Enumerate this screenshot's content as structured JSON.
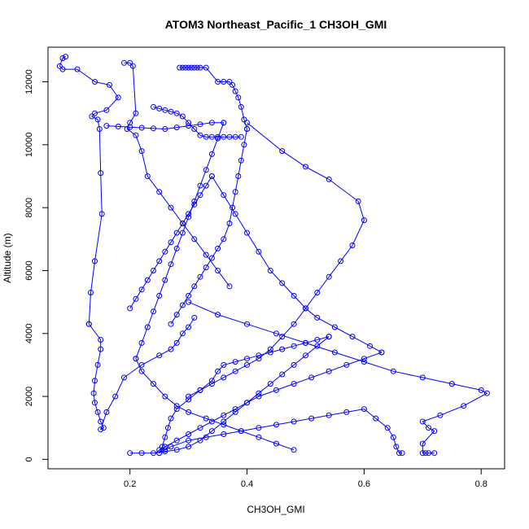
{
  "chart_data": {
    "type": "line",
    "title": "ATOM3 Northeast_Pacific_1 CH3OH_GMI",
    "xlabel": "CH3OH_GMI",
    "ylabel": "Altitude (m)",
    "xlim": [
      0.06,
      0.84
    ],
    "ylim": [
      -300,
      13100
    ],
    "xticks": [
      0.2,
      0.4,
      0.6,
      0.8
    ],
    "xtick_labels": [
      "0.2",
      "0.4",
      "0.6",
      "0.8"
    ],
    "yticks": [
      0,
      2000,
      4000,
      6000,
      8000,
      10000,
      12000
    ],
    "ytick_labels": [
      "0",
      "2000",
      "4000",
      "6000",
      "8000",
      "10000",
      "12000"
    ],
    "grid": false,
    "legend": "none",
    "series_color": "#0000ff",
    "marker": "open-circle",
    "series": [
      {
        "x": [
          0.09,
          0.085,
          0.08,
          0.085,
          0.11,
          0.14,
          0.165,
          0.18,
          0.16,
          0.14,
          0.135,
          0.145,
          0.148,
          0.15,
          0.152,
          0.14,
          0.133,
          0.13
        ],
        "y": [
          12800,
          12750,
          12500,
          12400,
          12400,
          12000,
          11900,
          11500,
          11100,
          11000,
          10900,
          10800,
          10500,
          9100,
          7800,
          6300,
          5300,
          4300
        ]
      },
      {
        "x": [
          0.13,
          0.15,
          0.15,
          0.145,
          0.14,
          0.138,
          0.14,
          0.145,
          0.15,
          0.155,
          0.15,
          0.16,
          0.175,
          0.19,
          0.22,
          0.25,
          0.27,
          0.28,
          0.29,
          0.3,
          0.31
        ],
        "y": [
          4300,
          3800,
          3500,
          3000,
          2500,
          2100,
          1800,
          1500,
          1200,
          1000,
          950,
          1500,
          2000,
          2600,
          3000,
          3300,
          3500,
          3700,
          4000,
          4200,
          4500
        ]
      },
      {
        "x": [
          0.19,
          0.2,
          0.205,
          0.21,
          0.2,
          0.195,
          0.21,
          0.22,
          0.23,
          0.25,
          0.27,
          0.29,
          0.31,
          0.33,
          0.35,
          0.37
        ],
        "y": [
          12600,
          12600,
          12500,
          11000,
          10700,
          10500,
          10300,
          9800,
          9000,
          8500,
          8000,
          7500,
          7000,
          6500,
          6000,
          5500
        ]
      },
      {
        "x": [
          0.24,
          0.25,
          0.26,
          0.27,
          0.28,
          0.29,
          0.3,
          0.31,
          0.32,
          0.33,
          0.34,
          0.35,
          0.36,
          0.37,
          0.38,
          0.39
        ],
        "y": [
          11200,
          11150,
          11100,
          11050,
          11000,
          10900,
          10700,
          10500,
          10300,
          10250,
          10250,
          10250,
          10250,
          10250,
          10250,
          10250
        ]
      },
      {
        "x": [
          0.285,
          0.29,
          0.295,
          0.3,
          0.305,
          0.31,
          0.315,
          0.32,
          0.33,
          0.35,
          0.36,
          0.37,
          0.375,
          0.38,
          0.385,
          0.39,
          0.395,
          0.4
        ],
        "y": [
          12450,
          12450,
          12450,
          12450,
          12450,
          12450,
          12450,
          12450,
          12450,
          12000,
          12000,
          12000,
          11900,
          11700,
          11500,
          11200,
          10800,
          10500
        ]
      },
      {
        "x": [
          0.4,
          0.395,
          0.39,
          0.385,
          0.38,
          0.375,
          0.37,
          0.36,
          0.35,
          0.34,
          0.33,
          0.32,
          0.31,
          0.3,
          0.29,
          0.28,
          0.27
        ],
        "y": [
          10500,
          10000,
          9500,
          9000,
          8500,
          8000,
          7500,
          7000,
          6700,
          6400,
          6100,
          5800,
          5500,
          5200,
          4900,
          4600,
          4300
        ]
      },
      {
        "x": [
          0.4,
          0.46,
          0.5,
          0.54,
          0.59,
          0.6,
          0.58,
          0.56,
          0.54,
          0.52,
          0.5,
          0.48,
          0.46,
          0.44,
          0.42,
          0.4,
          0.38,
          0.36,
          0.34,
          0.32,
          0.3
        ],
        "y": [
          10700,
          9800,
          9300,
          8900,
          8200,
          7600,
          6800,
          6300,
          5800,
          5300,
          4800,
          4300,
          3900,
          3500,
          3200,
          3000,
          2800,
          2600,
          2400,
          2200,
          2000
        ]
      },
      {
        "x": [
          0.3,
          0.35,
          0.4,
          0.45,
          0.5,
          0.55,
          0.6,
          0.65,
          0.7,
          0.75,
          0.8,
          0.81,
          0.77,
          0.73,
          0.7,
          0.71,
          0.72,
          0.7,
          0.7,
          0.705,
          0.71,
          0.72
        ],
        "y": [
          5000,
          4600,
          4300,
          4000,
          3700,
          3400,
          3100,
          2800,
          2600,
          2400,
          2200,
          2100,
          1700,
          1400,
          1200,
          1000,
          900,
          500,
          200,
          200,
          200,
          200
        ]
      },
      {
        "x": [
          0.25,
          0.26,
          0.27,
          0.3,
          0.33,
          0.36,
          0.39,
          0.42,
          0.45,
          0.48,
          0.51,
          0.54,
          0.57,
          0.6,
          0.62,
          0.64,
          0.65,
          0.655,
          0.66,
          0.665
        ],
        "y": [
          200,
          300,
          400,
          600,
          700,
          800,
          900,
          1000,
          1100,
          1200,
          1300,
          1400,
          1500,
          1600,
          1300,
          1000,
          700,
          400,
          200,
          200
        ]
      },
      {
        "x": [
          0.25,
          0.255,
          0.26,
          0.265,
          0.27,
          0.28,
          0.3,
          0.32,
          0.34,
          0.35,
          0.36,
          0.38,
          0.4,
          0.42,
          0.44,
          0.46,
          0.48,
          0.5,
          0.52,
          0.54
        ],
        "y": [
          200,
          400,
          700,
          1000,
          1300,
          1600,
          1900,
          2200,
          2500,
          2800,
          3000,
          3100,
          3200,
          3300,
          3400,
          3500,
          3600,
          3700,
          3800,
          3900
        ]
      },
      {
        "x": [
          0.54,
          0.52,
          0.5,
          0.48,
          0.46,
          0.44,
          0.42,
          0.4,
          0.38,
          0.36,
          0.34,
          0.32,
          0.3,
          0.28,
          0.26,
          0.24,
          0.22,
          0.2
        ],
        "y": [
          3900,
          3600,
          3300,
          3000,
          2700,
          2400,
          2100,
          1800,
          1500,
          1200,
          900,
          600,
          400,
          300,
          250,
          200,
          200,
          200
        ]
      },
      {
        "x": [
          0.2,
          0.21,
          0.22,
          0.23,
          0.24,
          0.25,
          0.26,
          0.27,
          0.28,
          0.29,
          0.3,
          0.31,
          0.32,
          0.33,
          0.34
        ],
        "y": [
          4800,
          5100,
          5400,
          5700,
          6000,
          6300,
          6600,
          6900,
          7200,
          7500,
          7800,
          8100,
          8400,
          8700,
          9000
        ]
      },
      {
        "x": [
          0.34,
          0.36,
          0.38,
          0.4,
          0.42,
          0.44,
          0.46,
          0.48,
          0.5,
          0.52,
          0.55,
          0.58,
          0.61,
          0.63
        ],
        "y": [
          9000,
          8400,
          7800,
          7200,
          6600,
          6000,
          5600,
          5200,
          4800,
          4500,
          4200,
          3900,
          3600,
          3400
        ]
      },
      {
        "x": [
          0.63,
          0.6,
          0.57,
          0.54,
          0.51,
          0.48,
          0.45,
          0.42,
          0.4,
          0.38,
          0.36,
          0.34,
          0.32,
          0.3,
          0.28,
          0.26,
          0.25
        ],
        "y": [
          3400,
          3200,
          3000,
          2800,
          2600,
          2400,
          2200,
          2000,
          1800,
          1600,
          1400,
          1200,
          1000,
          800,
          600,
          400,
          300
        ]
      },
      {
        "x": [
          0.16,
          0.18,
          0.2,
          0.22,
          0.24,
          0.26,
          0.28,
          0.3,
          0.32,
          0.34,
          0.36
        ],
        "y": [
          10600,
          10580,
          10560,
          10540,
          10520,
          10500,
          10550,
          10600,
          10650,
          10700,
          10700
        ]
      },
      {
        "x": [
          0.36,
          0.35,
          0.34,
          0.33,
          0.32,
          0.31,
          0.3,
          0.29,
          0.28,
          0.27,
          0.26,
          0.25,
          0.24,
          0.23,
          0.22,
          0.21
        ],
        "y": [
          10700,
          10200,
          9700,
          9200,
          8700,
          8200,
          7700,
          7200,
          6700,
          6200,
          5700,
          5200,
          4700,
          4200,
          3700,
          3200
        ]
      },
      {
        "x": [
          0.21,
          0.22,
          0.24,
          0.26,
          0.28,
          0.3,
          0.33,
          0.36,
          0.39,
          0.42,
          0.45,
          0.48
        ],
        "y": [
          3200,
          2800,
          2400,
          2000,
          1700,
          1500,
          1300,
          1100,
          900,
          700,
          500,
          300
        ]
      }
    ]
  }
}
